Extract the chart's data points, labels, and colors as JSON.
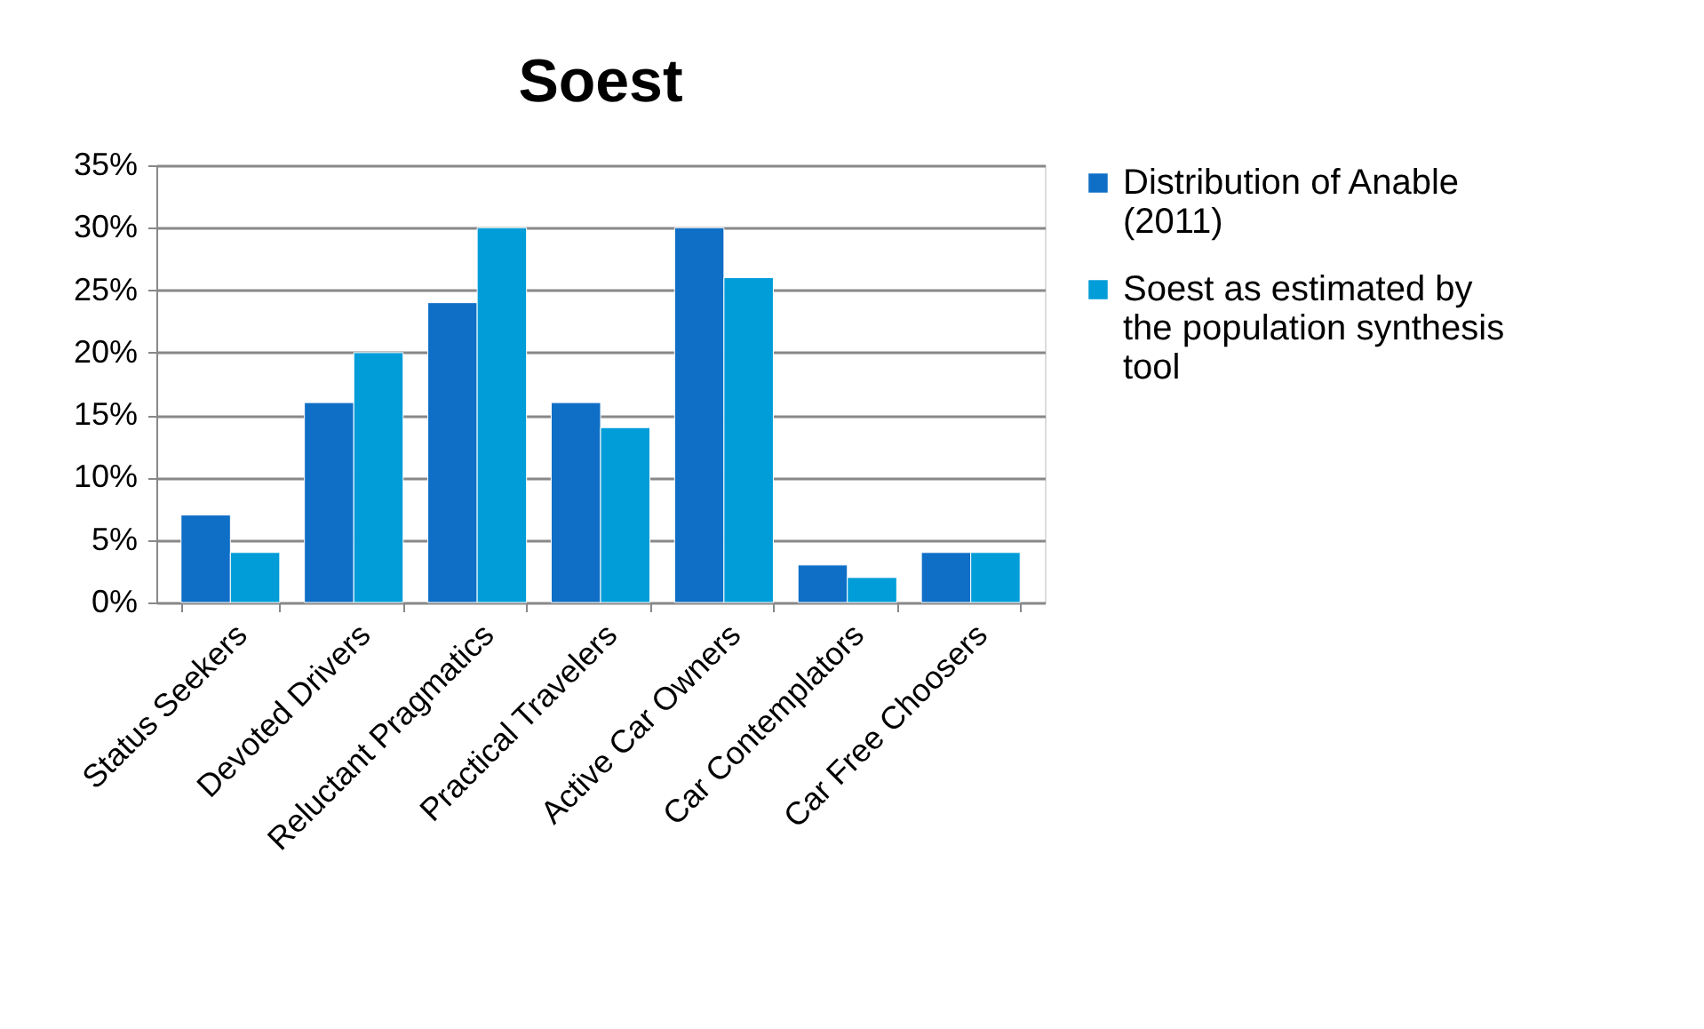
{
  "chart_data": {
    "type": "bar",
    "title": "Soest",
    "categories": [
      "Status Seekers",
      "Devoted Drivers",
      "Reluctant Pragmatics",
      "Practical Travelers",
      "Active Car Owners",
      "Car Contemplators",
      "Car Free Choosers"
    ],
    "series": [
      {
        "name": "Distribution of Anable (2011)",
        "color": "#0f6fc6",
        "values": [
          7,
          16,
          24,
          16,
          30,
          3,
          4
        ]
      },
      {
        "name": "Soest as estimated by the population synthesis tool",
        "color": "#009dd9",
        "values": [
          4,
          20,
          30,
          14,
          26,
          2,
          4
        ]
      }
    ],
    "ylim": [
      0,
      35
    ],
    "yticks": [
      {
        "value": 0,
        "label": "0%"
      },
      {
        "value": 5,
        "label": "5%"
      },
      {
        "value": 10,
        "label": "10%"
      },
      {
        "value": 15,
        "label": "15%"
      },
      {
        "value": 20,
        "label": "20%"
      },
      {
        "value": 25,
        "label": "25%"
      },
      {
        "value": 30,
        "label": "30%"
      },
      {
        "value": 35,
        "label": "35%"
      }
    ],
    "grid": "y",
    "legend": "right"
  }
}
